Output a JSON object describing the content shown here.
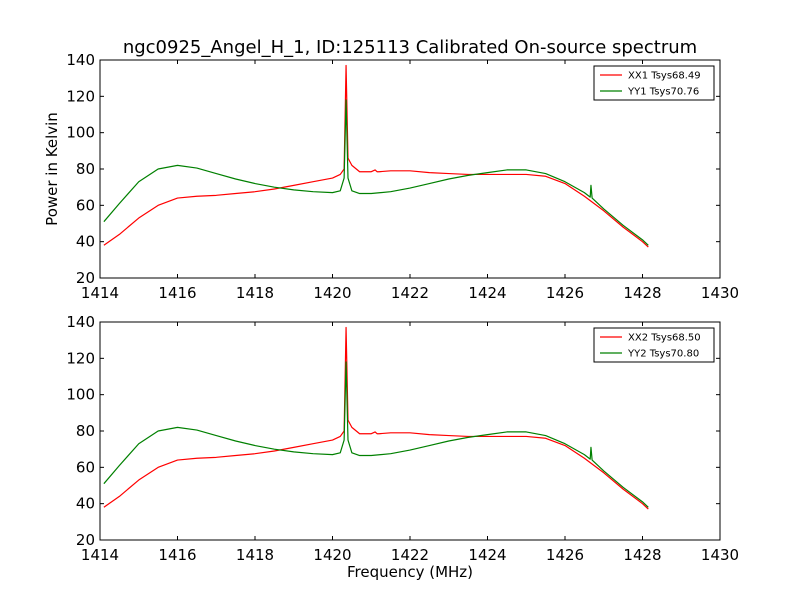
{
  "title": "ngc0925_Angel_H_1, ID:125113 Calibrated On-source spectrum",
  "colors": {
    "xx": "#ff0000",
    "yy": "#008000",
    "axes": "#000000",
    "background": "#ffffff"
  },
  "chart_data": [
    {
      "type": "line",
      "title": "ngc0925_Angel_H_1, ID:125113 Calibrated On-source spectrum",
      "xlabel": "",
      "ylabel": "Power in Kelvin",
      "xlim": [
        1414,
        1430
      ],
      "ylim": [
        20,
        140
      ],
      "xticks": [
        1414,
        1416,
        1418,
        1420,
        1422,
        1424,
        1426,
        1428,
        1430
      ],
      "yticks": [
        20,
        40,
        60,
        80,
        100,
        120,
        140
      ],
      "grid": false,
      "legend_position": "top-right",
      "series": [
        {
          "name": "XX1 Tsys68.49",
          "color": "#ff0000",
          "x": [
            1414.1,
            1414.5,
            1415.0,
            1415.5,
            1416.0,
            1416.5,
            1417.0,
            1417.5,
            1418.0,
            1418.5,
            1419.0,
            1419.5,
            1420.0,
            1420.2,
            1420.3,
            1420.35,
            1420.4,
            1420.5,
            1420.7,
            1421.0,
            1421.1,
            1421.15,
            1421.2,
            1421.5,
            1422.0,
            1422.5,
            1423.0,
            1423.5,
            1424.0,
            1424.5,
            1425.0,
            1425.5,
            1426.0,
            1426.5,
            1427.0,
            1427.5,
            1428.0,
            1428.15
          ],
          "values": [
            38,
            44,
            53,
            60,
            64,
            65,
            65.5,
            66.5,
            67.5,
            69,
            71,
            73,
            75,
            77,
            80,
            137,
            86,
            82,
            78.5,
            78.5,
            79.5,
            78.5,
            78.5,
            79,
            79,
            78,
            77.5,
            77,
            77,
            77,
            77,
            76,
            72,
            65,
            57,
            48,
            40,
            37
          ]
        },
        {
          "name": "YY1 Tsys70.76",
          "color": "#008000",
          "x": [
            1414.1,
            1414.5,
            1415.0,
            1415.5,
            1416.0,
            1416.5,
            1417.0,
            1417.5,
            1418.0,
            1418.5,
            1419.0,
            1419.5,
            1420.0,
            1420.2,
            1420.3,
            1420.35,
            1420.4,
            1420.5,
            1420.7,
            1421.0,
            1421.5,
            1422.0,
            1422.5,
            1423.0,
            1423.5,
            1424.0,
            1424.5,
            1425.0,
            1425.5,
            1426.0,
            1426.5,
            1426.65,
            1426.67,
            1426.7,
            1427.0,
            1427.5,
            1428.0,
            1428.15
          ],
          "values": [
            51,
            61,
            73,
            80,
            82,
            80.5,
            77.5,
            74.5,
            72,
            70,
            68.5,
            67.5,
            67,
            68,
            75,
            118,
            75,
            68,
            66.5,
            66.5,
            67.5,
            69.5,
            72,
            74.5,
            76.5,
            78,
            79.5,
            79.5,
            77.5,
            73,
            67,
            64.5,
            71,
            64,
            58,
            49,
            41,
            38
          ]
        }
      ]
    },
    {
      "type": "line",
      "title": "",
      "xlabel": "Frequency (MHz)",
      "ylabel": "",
      "xlim": [
        1414,
        1430
      ],
      "ylim": [
        20,
        140
      ],
      "xticks": [
        1414,
        1416,
        1418,
        1420,
        1422,
        1424,
        1426,
        1428,
        1430
      ],
      "yticks": [
        20,
        40,
        60,
        80,
        100,
        120,
        140
      ],
      "grid": false,
      "legend_position": "top-right",
      "series": [
        {
          "name": "XX2 Tsys68.50",
          "color": "#ff0000",
          "x": [
            1414.1,
            1414.5,
            1415.0,
            1415.5,
            1416.0,
            1416.5,
            1417.0,
            1417.5,
            1418.0,
            1418.5,
            1419.0,
            1419.5,
            1420.0,
            1420.2,
            1420.3,
            1420.35,
            1420.4,
            1420.5,
            1420.7,
            1421.0,
            1421.1,
            1421.15,
            1421.2,
            1421.5,
            1422.0,
            1422.5,
            1423.0,
            1423.5,
            1424.0,
            1424.5,
            1425.0,
            1425.5,
            1426.0,
            1426.5,
            1427.0,
            1427.5,
            1428.0,
            1428.15
          ],
          "values": [
            38,
            44,
            53,
            60,
            64,
            65,
            65.5,
            66.5,
            67.5,
            69,
            71,
            73,
            75,
            77,
            80,
            137,
            86,
            82,
            78.5,
            78.5,
            79.5,
            78.5,
            78.5,
            79,
            79,
            78,
            77.5,
            77,
            77,
            77,
            77,
            76,
            72,
            65,
            57,
            48,
            40,
            37
          ]
        },
        {
          "name": "YY2 Tsys70.80",
          "color": "#008000",
          "x": [
            1414.1,
            1414.5,
            1415.0,
            1415.5,
            1416.0,
            1416.5,
            1417.0,
            1417.5,
            1418.0,
            1418.5,
            1419.0,
            1419.5,
            1420.0,
            1420.2,
            1420.3,
            1420.35,
            1420.4,
            1420.5,
            1420.7,
            1421.0,
            1421.5,
            1422.0,
            1422.5,
            1423.0,
            1423.5,
            1424.0,
            1424.5,
            1425.0,
            1425.5,
            1426.0,
            1426.5,
            1426.65,
            1426.67,
            1426.7,
            1427.0,
            1427.5,
            1428.0,
            1428.15
          ],
          "values": [
            51,
            61,
            73,
            80,
            82,
            80.5,
            77.5,
            74.5,
            72,
            70,
            68.5,
            67.5,
            67,
            68,
            75,
            118,
            75,
            68,
            66.5,
            66.5,
            67.5,
            69.5,
            72,
            74.5,
            76.5,
            78,
            79.5,
            79.5,
            77.5,
            73,
            67,
            64.5,
            71,
            64,
            58,
            49,
            41,
            38
          ]
        }
      ]
    }
  ]
}
